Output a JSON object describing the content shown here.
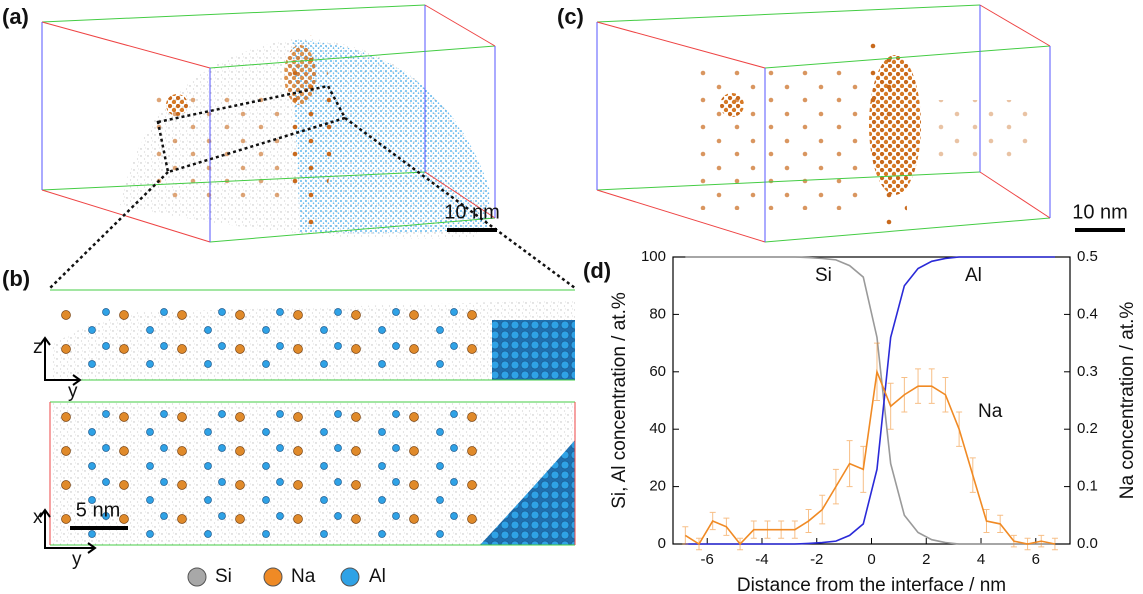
{
  "panels": {
    "a": {
      "label": "(a)",
      "scale_bar": "10 nm"
    },
    "b": {
      "label": "(b)",
      "scale_bar": "5 nm",
      "top_axes": [
        "z",
        "y"
      ],
      "bottom_axes": [
        "x",
        "y"
      ]
    },
    "c": {
      "label": "(c)",
      "scale_bar": "10 nm"
    },
    "d": {
      "label": "(d)"
    }
  },
  "legend": [
    {
      "label": "Si"
    },
    {
      "label": "Na"
    },
    {
      "label": "Al"
    }
  ],
  "chart_data": {
    "type": "line",
    "x_label": "Distance from the interface / nm",
    "y_label": "Si, Al concentration / at.%",
    "y2_label": "Na concentration / at.%",
    "x": [
      -6.8,
      -6.3,
      -5.8,
      -5.3,
      -4.8,
      -4.3,
      -3.8,
      -3.3,
      -2.8,
      -2.3,
      -1.8,
      -1.3,
      -0.8,
      -0.3,
      0.2,
      0.7,
      1.2,
      1.7,
      2.2,
      2.7,
      3.2,
      3.7,
      4.2,
      4.7,
      5.2,
      5.7,
      6.2,
      6.7
    ],
    "xlim": [
      -7.25,
      7.25
    ],
    "xticks": [
      -6,
      -4,
      -2,
      0,
      2,
      4,
      6
    ],
    "ylim": [
      0,
      100
    ],
    "yticks": [
      0,
      20,
      40,
      60,
      80,
      100
    ],
    "y2lim": [
      0,
      0.5
    ],
    "y2ticks": [
      {
        "value": 0,
        "label": "0.0"
      },
      0.1,
      0.2,
      0.3,
      0.4,
      0.5
    ],
    "series": [
      {
        "name": "Si",
        "color": "#9a9a9a",
        "values": [
          100,
          100,
          100,
          100,
          100,
          100,
          100,
          100,
          100,
          99.8,
          99.5,
          99,
          97,
          93,
          72,
          28,
          10,
          4,
          1.5,
          0.5,
          0,
          0,
          0,
          0,
          0,
          0,
          0,
          0
        ]
      },
      {
        "name": "Al",
        "color": "#2a2ad8",
        "values": [
          0,
          0,
          0,
          0,
          0,
          0,
          0,
          0,
          0,
          0.2,
          0.5,
          1,
          3,
          7,
          26,
          72,
          90,
          96,
          98.5,
          99.5,
          100,
          100,
          100,
          100,
          100,
          100,
          100,
          100
        ]
      },
      {
        "name": "Na",
        "color": "#f08a24",
        "axis": "y2",
        "values": [
          0.015,
          0,
          0.04,
          0.03,
          0,
          0.025,
          0.025,
          0.025,
          0.025,
          0.04,
          0.06,
          0.1,
          0.14,
          0.13,
          0.3,
          0.24,
          0.26,
          0.275,
          0.275,
          0.26,
          0.2,
          0.12,
          0.04,
          0.035,
          0.005,
          0,
          0.005,
          0
        ],
        "errors": [
          0.015,
          0.01,
          0.015,
          0.015,
          0.01,
          0.015,
          0.015,
          0.015,
          0.015,
          0.02,
          0.025,
          0.03,
          0.04,
          0.04,
          0.05,
          0.04,
          0.03,
          0.03,
          0.03,
          0.03,
          0.03,
          0.03,
          0.02,
          0.015,
          0.01,
          0.01,
          0.01,
          0.01
        ]
      }
    ]
  }
}
